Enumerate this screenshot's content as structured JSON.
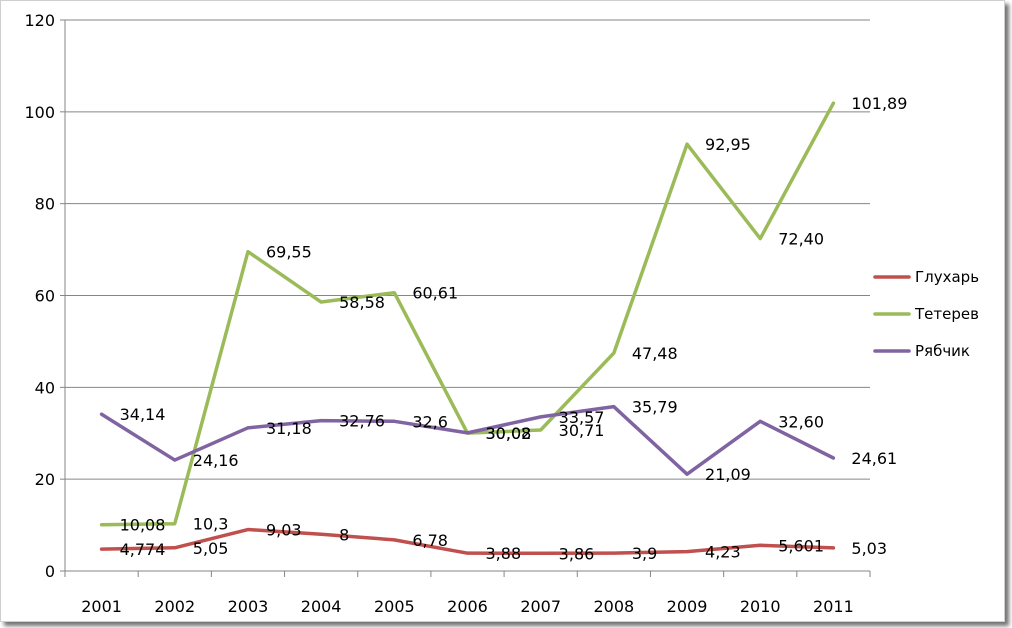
{
  "chart_data": {
    "type": "line",
    "title": "",
    "xlabel": "",
    "ylabel": "",
    "ylim": [
      0,
      120
    ],
    "y_ticks": [
      "0",
      "20",
      "40",
      "60",
      "80",
      "100",
      "120"
    ],
    "categories": [
      "2001",
      "2002",
      "2003",
      "2004",
      "2005",
      "2006",
      "2007",
      "2008",
      "2009",
      "2010",
      "2011"
    ],
    "grid": "horizontal",
    "legend_position": "right",
    "series": [
      {
        "name": "Глухарь",
        "color": "#c0504d",
        "values": [
          4.774,
          5.05,
          9.03,
          8,
          6.78,
          3.88,
          3.86,
          3.9,
          4.23,
          5.601,
          5.03
        ],
        "labels": [
          "4,774",
          "5,05",
          "9,03",
          "8",
          "6,78",
          "3,88",
          "3,86",
          "3,9",
          "4,23",
          "5,601",
          "5,03"
        ]
      },
      {
        "name": "Тетерев",
        "color": "#9bbb59",
        "values": [
          10.08,
          10.3,
          69.55,
          58.58,
          60.61,
          30.02,
          30.71,
          47.48,
          92.95,
          72.4,
          101.89
        ],
        "labels": [
          "10,08",
          "10,3",
          "69,55",
          "58,58",
          "60,61",
          "30,02",
          "30,71",
          "47,48",
          "92,95",
          "72,40",
          "101,89"
        ]
      },
      {
        "name": "Рябчик",
        "color": "#8064a2",
        "values": [
          34.14,
          24.16,
          31.18,
          32.76,
          32.6,
          30.08,
          33.57,
          35.79,
          21.09,
          32.6,
          24.61
        ],
        "labels": [
          "34,14",
          "24,16",
          "31,18",
          "32,76",
          "32,6",
          "30,08",
          "33,57",
          "35,79",
          "21,09",
          "32,60",
          "24,61"
        ]
      }
    ]
  }
}
